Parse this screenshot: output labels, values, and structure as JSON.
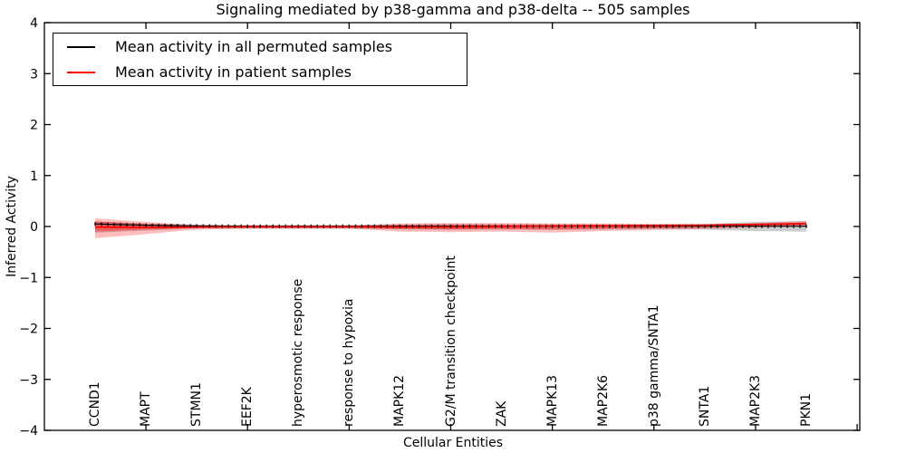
{
  "title": "Signaling mediated by p38-gamma and p38-delta -- 505 samples",
  "axes": {
    "x_label": "Cellular Entities",
    "y_label": "Inferred Activity"
  },
  "legend": {
    "items": [
      {
        "label": "Mean activity in all permuted samples",
        "color": "#000000"
      },
      {
        "label": "Mean activity in patient samples",
        "color": "#ff0000"
      }
    ]
  },
  "chart_data": {
    "type": "line",
    "title": "Signaling mediated by p38-gamma and p38-delta -- 505 samples",
    "xlabel": "Cellular Entities",
    "ylabel": "Inferred Activity",
    "ylim": [
      -4,
      4
    ],
    "y_ticks": [
      "4",
      "3",
      "2",
      "1",
      "0",
      "−1",
      "−2",
      "−3",
      "−4"
    ],
    "grid": false,
    "legend_position": "upper left",
    "categories": [
      "CCND1",
      "MAPT",
      "STMN1",
      "EEF2K",
      "hyperosmotic response",
      "response to hypoxia",
      "MAPK12",
      "G2/M transition checkpoint",
      "ZAK",
      "MAPK13",
      "MAP2K6",
      "p38 gamma/SNTA1",
      "SNTA1",
      "MAP2K3",
      "PKN1"
    ],
    "series": [
      {
        "name": "Mean activity in all permuted samples",
        "color": "#000000",
        "marker": "|",
        "values": [
          0.05,
          0.025,
          0.01,
          0.005,
          0.005,
          0.005,
          0.005,
          0.005,
          0.005,
          0.005,
          0.005,
          0.005,
          0.005,
          0.005,
          0.005
        ],
        "band_upper": [
          0.1,
          0.06,
          0.035,
          0.03,
          0.03,
          0.03,
          0.04,
          0.05,
          0.045,
          0.045,
          0.04,
          0.04,
          0.05,
          0.09,
          0.11
        ],
        "band_lower": [
          -0.12,
          -0.08,
          -0.04,
          -0.045,
          -0.045,
          -0.045,
          -0.055,
          -0.065,
          -0.06,
          -0.065,
          -0.06,
          -0.05,
          -0.06,
          -0.09,
          -0.1
        ]
      },
      {
        "name": "Mean activity in patient samples",
        "color": "#ff0000",
        "marker": "none",
        "values": [
          -0.01,
          -0.02,
          -0.01,
          -0.005,
          -0.005,
          -0.005,
          -0.01,
          -0.01,
          0.0,
          0.01,
          0.015,
          0.02,
          0.025,
          0.04,
          0.055
        ],
        "band_upper": [
          0.16,
          0.09,
          0.03,
          0.02,
          0.02,
          0.02,
          0.06,
          0.07,
          0.07,
          0.06,
          0.06,
          0.05,
          0.04,
          0.07,
          0.1
        ],
        "band_lower": [
          -0.23,
          -0.15,
          -0.06,
          -0.04,
          -0.04,
          -0.04,
          -0.1,
          -0.11,
          -0.1,
          -0.12,
          -0.09,
          -0.07,
          -0.05,
          -0.02,
          0.01
        ],
        "inner_band_upper": [
          0.1,
          0.05,
          0.02,
          0.012,
          0.012,
          0.012,
          0.03,
          0.035,
          0.035,
          0.03,
          0.03,
          0.03,
          0.03,
          0.055,
          0.075
        ],
        "inner_band_lower": [
          -0.1,
          -0.06,
          -0.03,
          -0.022,
          -0.022,
          -0.022,
          -0.05,
          -0.055,
          -0.05,
          -0.06,
          -0.045,
          -0.035,
          -0.02,
          0.01,
          0.035
        ]
      }
    ],
    "n_markers": 113,
    "x_tick_slots": [
      1,
      3,
      5,
      7,
      9,
      11,
      13,
      15
    ],
    "colors": {
      "permuted_band": "rgba(110,110,110,0.35)",
      "patient_band": "rgba(255,0,0,0.25)",
      "patient_inner_band": "rgba(255,0,0,0.35)"
    }
  }
}
